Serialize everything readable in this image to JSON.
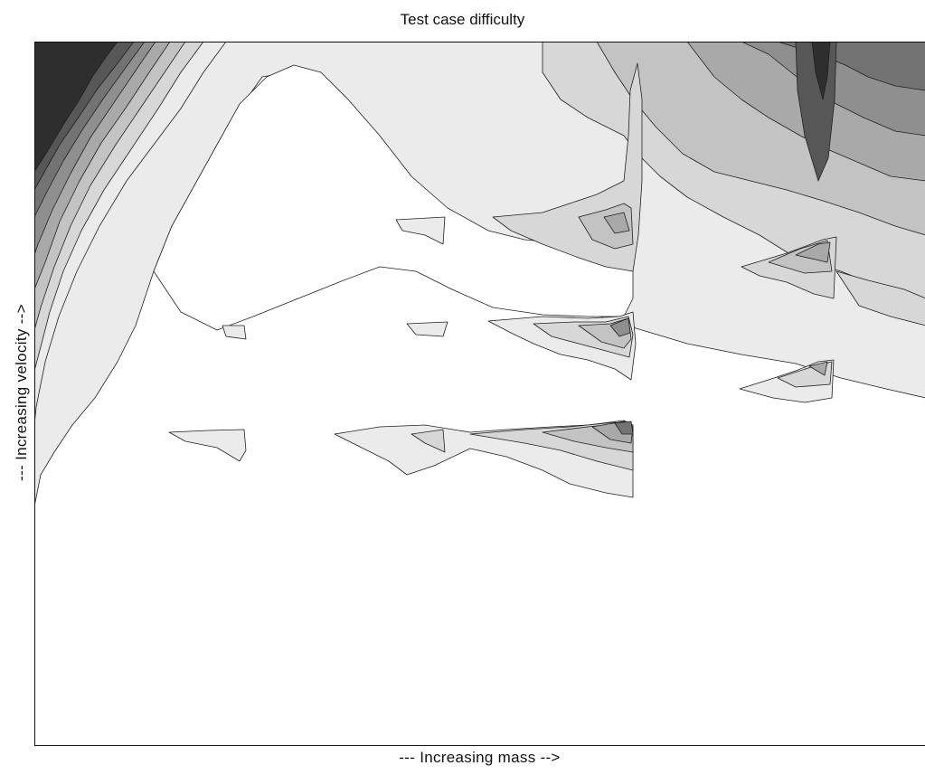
{
  "chart_data": {
    "type": "contour",
    "title": "Test case difficulty",
    "xlabel": "--- Increasing mass -->",
    "ylabel": "--- Increasing velocity -->",
    "grid": false,
    "legend": "none",
    "levels": 8,
    "colormap": [
      "#ffffff",
      "#ebebeb",
      "#d7d7d7",
      "#c3c3c3",
      "#a9a9a9",
      "#8f8f8f",
      "#737373",
      "#575757",
      "#2e2e2e"
    ],
    "line_color": "#202020"
  }
}
